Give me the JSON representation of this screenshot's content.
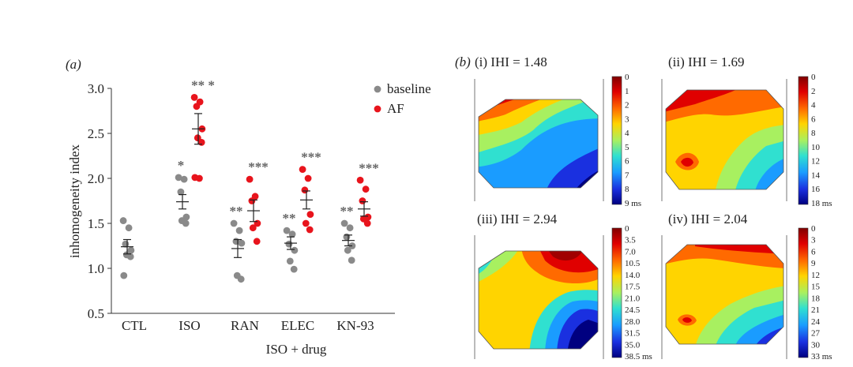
{
  "chart_data": [
    {
      "type": "scatter",
      "panel_label": "(a)",
      "xlabel": "ISO + drug",
      "ylabel": "inhomogeneity index",
      "ylim": [
        0.5,
        3.0
      ],
      "yticks": [
        "0.5",
        "1.0",
        "1.5",
        "2.0",
        "2.5",
        "3.0"
      ],
      "categories": [
        "CTL",
        "ISO",
        "RAN",
        "ELEC",
        "KN-93"
      ],
      "legend": {
        "placement": "top-right",
        "entries": [
          "baseline",
          "AF"
        ]
      },
      "series": [
        {
          "name": "baseline",
          "color": "#8a8a8a",
          "points": [
            [
              1.53,
              1.45,
              1.27,
              1.2,
              1.15,
              1.13,
              0.92
            ],
            [
              2.01,
              1.99,
              1.85,
              1.57,
              1.53,
              1.5
            ],
            [
              1.5,
              1.42,
              1.3,
              1.28,
              0.92,
              0.88
            ],
            [
              1.42,
              1.38,
              1.27,
              1.2,
              1.08,
              0.99
            ],
            [
              1.5,
              1.45,
              1.35,
              1.25,
              1.2,
              1.09
            ]
          ],
          "mean": [
            1.24,
            1.74,
            1.22,
            1.28,
            1.31
          ],
          "sem": [
            0.08,
            0.08,
            0.1,
            0.07,
            0.06
          ],
          "annotations": [
            "",
            "*",
            "**",
            "**",
            "**"
          ]
        },
        {
          "name": "AF",
          "color": "#e8141c",
          "points": [
            [],
            [
              2.9,
              2.85,
              2.8,
              2.55,
              2.45,
              2.4,
              2.01,
              2.0
            ],
            [
              1.99,
              1.8,
              1.75,
              1.5,
              1.45,
              1.3
            ],
            [
              2.1,
              2.0,
              1.87,
              1.6,
              1.5,
              1.43
            ],
            [
              1.98,
              1.88,
              1.75,
              1.57,
              1.55,
              1.5
            ]
          ],
          "mean": [
            null,
            2.55,
            1.64,
            1.76,
            1.66
          ],
          "sem": [
            null,
            0.17,
            0.12,
            0.1,
            0.08
          ],
          "annotations": [
            "",
            "** *",
            "***",
            "***",
            "***"
          ]
        }
      ]
    },
    {
      "type": "heatmap",
      "panel_label": "(b)",
      "maps": [
        {
          "label": "(i) IHI = 1.48",
          "ticks": [
            "0",
            "1",
            "2",
            "3",
            "4",
            "5",
            "6",
            "7",
            "8",
            "9 ms"
          ]
        },
        {
          "label": "(ii) IHI = 1.69",
          "ticks": [
            "0",
            "2",
            "4",
            "6",
            "8",
            "10",
            "12",
            "14",
            "16",
            "18 ms"
          ]
        },
        {
          "label": "(iii) IHI = 2.94",
          "ticks": [
            "0",
            "3.5",
            "7.0",
            "10.5",
            "14.0",
            "17.5",
            "21.0",
            "24.5",
            "28.0",
            "31.5",
            "35.0",
            "38.5 ms"
          ]
        },
        {
          "label": "(iv) IHI = 2.04",
          "ticks": [
            "0",
            "3",
            "6",
            "9",
            "12",
            "15",
            "18",
            "21",
            "24",
            "27",
            "30",
            "33 ms"
          ]
        }
      ]
    }
  ]
}
